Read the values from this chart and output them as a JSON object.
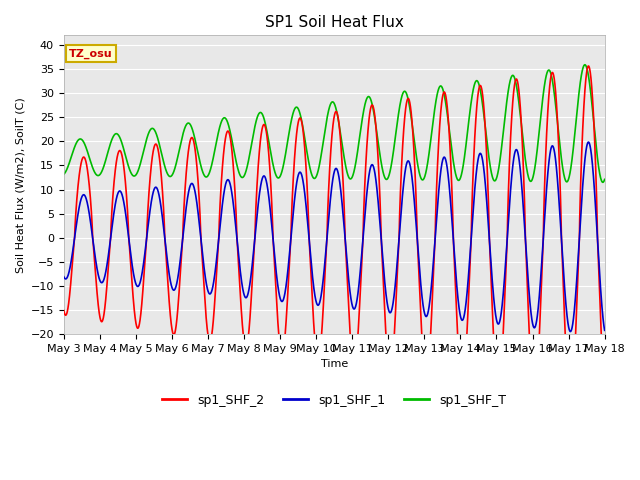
{
  "title": "SP1 Soil Heat Flux",
  "xlabel": "Time",
  "ylabel": "Soil Heat Flux (W/m2), SoilT (C)",
  "ylim": [
    -20,
    42
  ],
  "yticks": [
    -20,
    -15,
    -10,
    -5,
    0,
    5,
    10,
    15,
    20,
    25,
    30,
    35,
    40
  ],
  "xtick_labels": [
    "May 3",
    "May 4",
    "May 5",
    "May 6",
    "May 7",
    "May 8",
    "May 9",
    "May 10",
    "May 11",
    "May 12",
    "May 13",
    "May 14",
    "May 15",
    "May 16",
    "May 17",
    "May 18"
  ],
  "fig_bg": "#ffffff",
  "plot_bg": "#e8e8e8",
  "grid_color": "#ffffff",
  "line_colors": {
    "shf2": "#ff0000",
    "shf1": "#0000cc",
    "shft": "#00bb00"
  },
  "line_widths": {
    "shf2": 1.2,
    "shf1": 1.2,
    "shft": 1.2
  },
  "legend_labels": [
    "sp1_SHF_2",
    "sp1_SHF_1",
    "sp1_SHF_T"
  ],
  "tz_label": "TZ_osu",
  "tz_box_facecolor": "#ffffcc",
  "tz_box_edgecolor": "#ccaa00",
  "tz_text_color": "#cc0000",
  "title_fontsize": 11,
  "axis_label_fontsize": 8,
  "tick_fontsize": 8
}
